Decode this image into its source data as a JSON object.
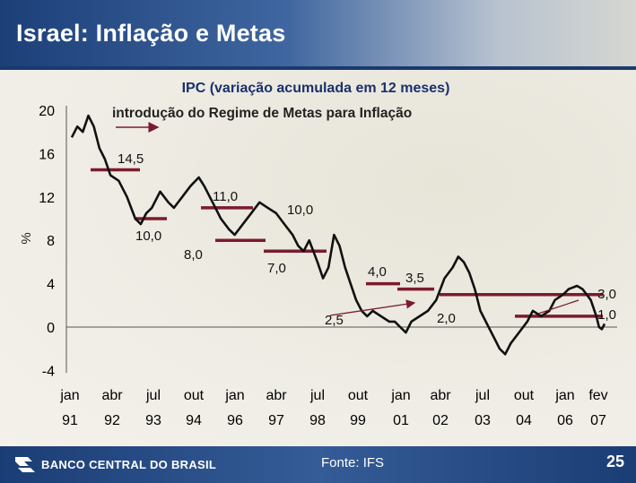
{
  "header": {
    "title": "Israel: Inflação e Metas"
  },
  "footer": {
    "bank": "BANCO CENTRAL DO BRASIL",
    "source": "Fonte: IFS",
    "page": "25"
  },
  "colors": {
    "series": "#111111",
    "target": "#7a1b2e",
    "arrow": "#7a1b2e",
    "header": "#1c3f78"
  },
  "chart_data": {
    "type": "line",
    "title": "IPC (variação acumulada em 12 meses)",
    "ylabel": "%",
    "ylim": [
      -4,
      22
    ],
    "yticks": [
      "20",
      "16",
      "12",
      "8",
      "4",
      "0",
      "-4"
    ],
    "ytick_values": [
      20,
      16,
      12,
      8,
      4,
      0,
      -4
    ],
    "xticks": [
      {
        "month": "jan",
        "year": "91"
      },
      {
        "month": "abr",
        "year": "92"
      },
      {
        "month": "jul",
        "year": "93"
      },
      {
        "month": "out",
        "year": "94"
      },
      {
        "month": "jan",
        "year": "96"
      },
      {
        "month": "abr",
        "year": "97"
      },
      {
        "month": "jul",
        "year": "98"
      },
      {
        "month": "out",
        "year": "99"
      },
      {
        "month": "jan",
        "year": "01"
      },
      {
        "month": "abr",
        "year": "02"
      },
      {
        "month": "jul",
        "year": "03"
      },
      {
        "month": "out",
        "year": "04"
      },
      {
        "month": "jan",
        "year": "06"
      },
      {
        "month": "fev",
        "year": "07"
      }
    ],
    "xtick_dates": [
      "1991-01",
      "1992-04",
      "1993-07",
      "1994-10",
      "1996-01",
      "1997-04",
      "1998-07",
      "1999-10",
      "2001-01",
      "2002-04",
      "2003-07",
      "2004-10",
      "2006-01",
      "2007-02"
    ],
    "annotation": {
      "text": "introdução do Regime de Metas para Inflação",
      "arrow_at": "1991-12"
    },
    "series": [
      {
        "points": [
          [
            "1991-01",
            17.5
          ],
          [
            "1991-03",
            18.5
          ],
          [
            "1991-05",
            18.0
          ],
          [
            "1991-07",
            19.5
          ],
          [
            "1991-09",
            18.5
          ],
          [
            "1991-11",
            16.5
          ],
          [
            "1992-01",
            15.5
          ],
          [
            "1992-03",
            14.0
          ],
          [
            "1992-06",
            13.5
          ],
          [
            "1992-09",
            12.0
          ],
          [
            "1992-12",
            10.0
          ],
          [
            "1993-02",
            9.5
          ],
          [
            "1993-04",
            10.5
          ],
          [
            "1993-06",
            11.0
          ],
          [
            "1993-09",
            12.5
          ],
          [
            "1993-12",
            11.5
          ],
          [
            "1994-02",
            11.0
          ],
          [
            "1994-05",
            12.0
          ],
          [
            "1994-08",
            13.0
          ],
          [
            "1994-11",
            13.8
          ],
          [
            "1995-01",
            13.0
          ],
          [
            "1995-04",
            11.5
          ],
          [
            "1995-07",
            10.0
          ],
          [
            "1995-10",
            9.0
          ],
          [
            "1995-12",
            8.5
          ],
          [
            "1996-03",
            9.5
          ],
          [
            "1996-06",
            10.5
          ],
          [
            "1996-09",
            11.5
          ],
          [
            "1996-12",
            11.0
          ],
          [
            "1997-03",
            10.5
          ],
          [
            "1997-06",
            9.5
          ],
          [
            "1997-09",
            8.5
          ],
          [
            "1997-11",
            7.5
          ],
          [
            "1998-01",
            7.0
          ],
          [
            "1998-03",
            8.0
          ],
          [
            "1998-06",
            6.0
          ],
          [
            "1998-08",
            4.5
          ],
          [
            "1998-10",
            5.5
          ],
          [
            "1998-12",
            8.5
          ],
          [
            "1999-02",
            7.5
          ],
          [
            "1999-04",
            5.5
          ],
          [
            "1999-06",
            4.0
          ],
          [
            "1999-08",
            2.5
          ],
          [
            "1999-10",
            1.5
          ],
          [
            "1999-12",
            1.0
          ],
          [
            "2000-02",
            1.5
          ],
          [
            "2000-05",
            1.0
          ],
          [
            "2000-08",
            0.5
          ],
          [
            "2000-10",
            0.5
          ],
          [
            "2000-12",
            0.0
          ],
          [
            "2001-02",
            -0.5
          ],
          [
            "2001-04",
            0.5
          ],
          [
            "2001-07",
            1.0
          ],
          [
            "2001-10",
            1.5
          ],
          [
            "2002-01",
            2.5
          ],
          [
            "2002-04",
            4.5
          ],
          [
            "2002-07",
            5.5
          ],
          [
            "2002-09",
            6.5
          ],
          [
            "2002-11",
            6.0
          ],
          [
            "2003-01",
            5.0
          ],
          [
            "2003-03",
            3.5
          ],
          [
            "2003-05",
            1.5
          ],
          [
            "2003-08",
            0.0
          ],
          [
            "2003-10",
            -1.0
          ],
          [
            "2003-12",
            -2.0
          ],
          [
            "2004-02",
            -2.5
          ],
          [
            "2004-04",
            -1.5
          ],
          [
            "2004-07",
            -0.5
          ],
          [
            "2004-10",
            0.5
          ],
          [
            "2004-12",
            1.5
          ],
          [
            "2005-03",
            1.0
          ],
          [
            "2005-06",
            1.5
          ],
          [
            "2005-08",
            2.5
          ],
          [
            "2005-11",
            3.0
          ],
          [
            "2006-01",
            3.5
          ],
          [
            "2006-04",
            3.8
          ],
          [
            "2006-06",
            3.5
          ],
          [
            "2006-09",
            2.5
          ],
          [
            "2006-11",
            1.0
          ],
          [
            "2006-12",
            0.0
          ],
          [
            "2007-01",
            -0.2
          ],
          [
            "2007-02",
            0.3
          ]
        ]
      }
    ],
    "targets": [
      {
        "label": "14,5",
        "value": 14.5,
        "from": "1991-12",
        "to": "1992-11"
      },
      {
        "label": "10,0",
        "value": 10.0,
        "from": "1992-09",
        "to": "1993-08"
      },
      {
        "label": "11,0",
        "value": 11.0,
        "from": "1994-01",
        "to": "1994-12"
      },
      {
        "label": "8,0",
        "value": 8.0,
        "from": "1995-01",
        "to": "1996-12"
      },
      {
        "label": "10,0",
        "value": 10.0,
        "from": "1995-12",
        "to": "1996-12"
      },
      {
        "label": "7,0",
        "value": 7.0,
        "from": "1997-01",
        "to": "1998-09"
      },
      {
        "label": "4,0",
        "value": 4.0,
        "from": "1999-01",
        "to": "2000-12"
      },
      {
        "label": "3,5",
        "value": 3.5,
        "from": "2001-01",
        "to": "2001-12"
      },
      {
        "label": "3,0",
        "value": 3.0,
        "from": "2002-01",
        "to": "2007-02"
      },
      {
        "label": "2,5",
        "value": 2.5,
        "from": "2003-01",
        "to": "2003-12"
      },
      {
        "label": "2,0",
        "value": 2.0,
        "from": "2003-01",
        "to": "2003-12"
      },
      {
        "label": "1,0",
        "value": 1.0,
        "from": "2003-01",
        "to": "2007-02"
      }
    ]
  }
}
